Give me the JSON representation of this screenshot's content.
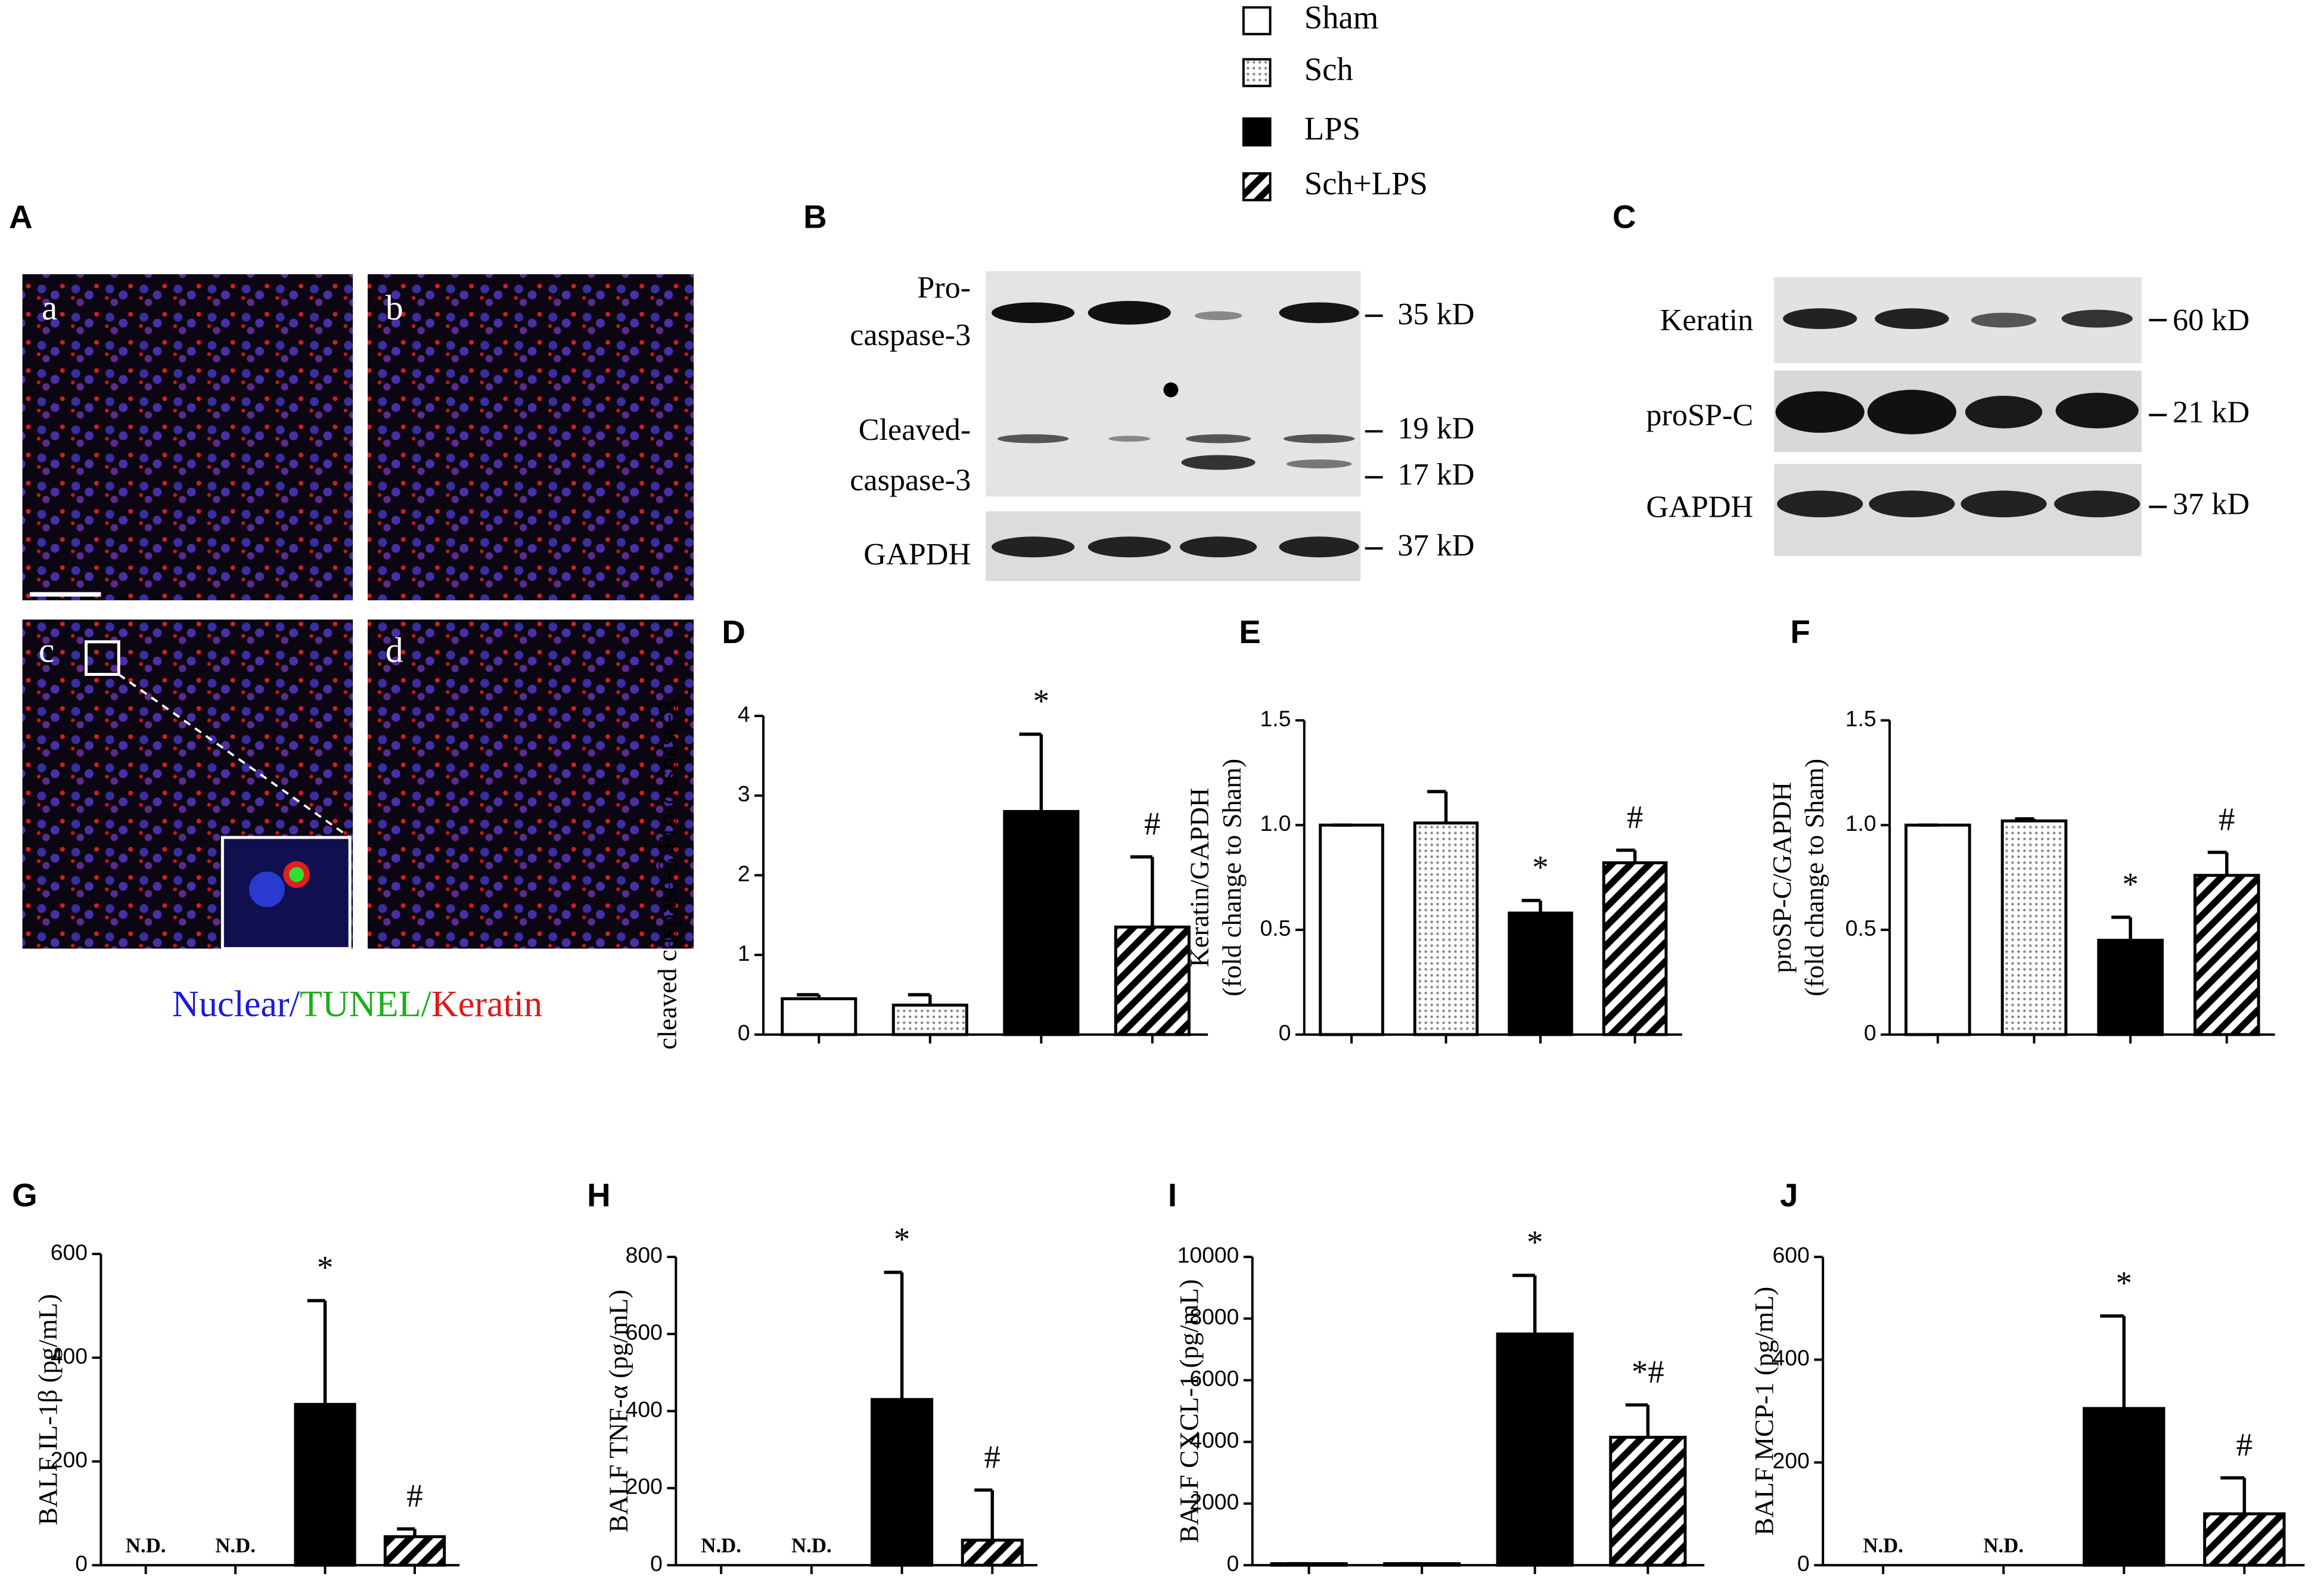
{
  "legend": [
    {
      "name": "Sham",
      "fill": "white"
    },
    {
      "name": "Sch",
      "fill": "dots"
    },
    {
      "name": "LPS",
      "fill": "black"
    },
    {
      "name": "Sch+LPS",
      "fill": "hatch"
    }
  ],
  "panel_a": {
    "label": "A",
    "images": [
      "a",
      "b",
      "c",
      "d"
    ],
    "caption": [
      {
        "text": "Nuclear",
        "color": "#1a1ad8"
      },
      {
        "text": "/",
        "color": "#1a1ad8"
      },
      {
        "text": "TUNEL",
        "color": "#18b018"
      },
      {
        "text": "/",
        "color": "#18b018"
      },
      {
        "text": "Keratin",
        "color": "#e01818"
      }
    ]
  },
  "panel_b": {
    "label": "B",
    "rows": [
      "Pro-",
      "caspase-3",
      "Cleaved-",
      "caspase-3",
      "GAPDH"
    ],
    "sizes": [
      "35 kD",
      "19 kD",
      "17 kD",
      "37 kD"
    ]
  },
  "panel_c": {
    "label": "C",
    "rows": [
      "Keratin",
      "proSP-C",
      "GAPDH"
    ],
    "sizes": [
      "60 kD",
      "21 kD",
      "37 kD"
    ]
  },
  "chart_data": [
    {
      "type": "bar",
      "label": "D",
      "y_label": [
        "cleaved caspase-3/Pro-caspase-3"
      ],
      "ylim": [
        0,
        4
      ],
      "yticks": [
        0,
        1,
        2,
        3,
        4
      ],
      "values": [
        0.45,
        0.37,
        2.8,
        1.35
      ],
      "errors": [
        0.05,
        0.13,
        0.97,
        0.88
      ],
      "marks": [
        null,
        null,
        "*",
        "#"
      ]
    },
    {
      "type": "bar",
      "label": "E",
      "y_label": [
        "Keratin/GAPDH",
        "(fold change to Sham)"
      ],
      "ylim": [
        0,
        1.5
      ],
      "yticks": [
        0,
        0.5,
        {
          "value": 1,
          "label": "1.0"
        },
        1.5
      ],
      "values": [
        1.0,
        1.01,
        0.58,
        0.82
      ],
      "errors": [
        0,
        0.15,
        0.06,
        0.06
      ],
      "marks": [
        null,
        null,
        "*",
        "#"
      ]
    },
    {
      "type": "bar",
      "label": "F",
      "y_label": [
        "proSP-C/GAPDH",
        "(fold change to Sham)"
      ],
      "ylim": [
        0,
        1.5
      ],
      "yticks": [
        0,
        0.5,
        {
          "value": 1,
          "label": "1.0"
        },
        1.5
      ],
      "values": [
        1.0,
        1.02,
        0.45,
        0.76
      ],
      "errors": [
        0,
        0.01,
        0.11,
        0.11
      ],
      "marks": [
        null,
        null,
        "*",
        "#"
      ]
    },
    {
      "type": "bar",
      "label": "G",
      "y_label": [
        "BALF IL-1β (pg/mL)"
      ],
      "ylim": [
        0,
        600
      ],
      "yticks": [
        0,
        200,
        400,
        600
      ],
      "values": [
        null,
        null,
        310,
        55
      ],
      "errors": [
        null,
        null,
        200,
        15
      ],
      "value_labels": [
        "N.D.",
        "N.D.",
        null,
        null
      ],
      "marks": [
        null,
        null,
        "*",
        "#"
      ]
    },
    {
      "type": "bar",
      "label": "H",
      "y_label": [
        "BALF TNF-α (pg/mL)"
      ],
      "ylim": [
        0,
        800
      ],
      "yticks": [
        0,
        200,
        400,
        600,
        800
      ],
      "values": [
        null,
        null,
        430,
        65
      ],
      "errors": [
        null,
        null,
        330,
        130
      ],
      "value_labels": [
        "N.D.",
        "N.D.",
        null,
        null
      ],
      "marks": [
        null,
        null,
        "*",
        "#"
      ]
    },
    {
      "type": "bar",
      "label": "I",
      "y_label": [
        "BALF CXCL-1  (pg/mL)"
      ],
      "ylim": [
        0,
        10000
      ],
      "yticks": [
        0,
        2000,
        4000,
        6000,
        8000,
        10000
      ],
      "values": [
        50,
        50,
        7500,
        4150
      ],
      "errors": [
        0,
        0,
        1900,
        1050
      ],
      "marks": [
        null,
        null,
        "*",
        "*#"
      ]
    },
    {
      "type": "bar",
      "label": "J",
      "y_label": [
        "BALF MCP-1 (pg/mL)"
      ],
      "ylim": [
        0,
        600
      ],
      "yticks": [
        0,
        200,
        400,
        600
      ],
      "values": [
        null,
        null,
        305,
        100
      ],
      "errors": [
        null,
        null,
        180,
        70
      ],
      "value_labels": [
        "N.D.",
        "N.D.",
        null,
        null
      ],
      "marks": [
        null,
        null,
        "*",
        "#"
      ]
    }
  ]
}
